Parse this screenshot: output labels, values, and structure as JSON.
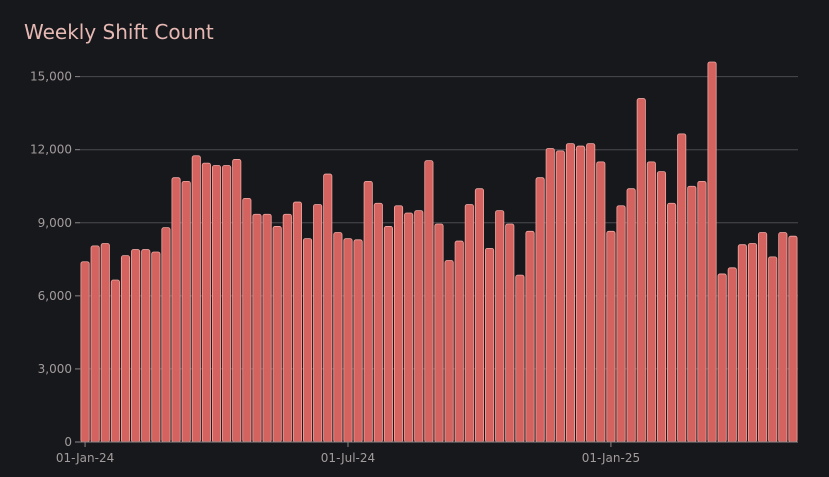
{
  "chart_data": {
    "type": "bar",
    "title": "Weekly Shift Count",
    "xlabel": "",
    "ylabel": "",
    "ylim": [
      0,
      15600
    ],
    "yticks": [
      0,
      3000,
      6000,
      9000,
      12000,
      15000
    ],
    "ytick_labels": [
      "0",
      "3,000",
      "6,000",
      "9,000",
      "12,000",
      "15,000"
    ],
    "xtick_labels": [
      {
        "label": "01-Jan-24",
        "index": 0
      },
      {
        "label": "01-Jul-24",
        "index": 26
      },
      {
        "label": "01-Jan-25",
        "index": 52
      }
    ],
    "grid": true,
    "bar_color": "#d4625f",
    "bar_edge_color": "#f2a7a2",
    "values": [
      7400,
      8050,
      8150,
      6650,
      7650,
      7900,
      7900,
      7800,
      8800,
      10850,
      10700,
      11750,
      11450,
      11350,
      11350,
      11600,
      10000,
      9350,
      9350,
      8850,
      9350,
      9850,
      8350,
      9750,
      11000,
      8600,
      8350,
      8300,
      10700,
      9800,
      8850,
      9700,
      9400,
      9500,
      11550,
      8950,
      7450,
      8250,
      9750,
      10400,
      7950,
      9500,
      8950,
      6850,
      8650,
      10850,
      12050,
      11950,
      12250,
      12150,
      12250,
      11500,
      8650,
      9700,
      10400,
      14100,
      11500,
      11100,
      9800,
      12650,
      10500,
      10700,
      15600,
      6900,
      7150,
      8100,
      8150,
      8600,
      7600,
      8600,
      8450
    ]
  }
}
